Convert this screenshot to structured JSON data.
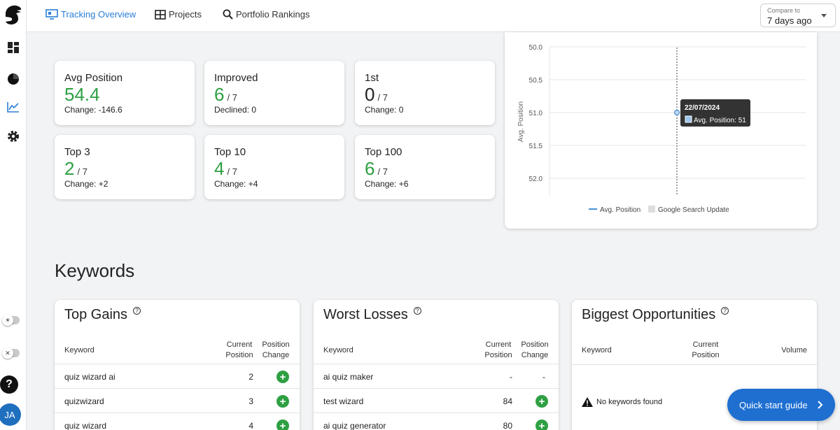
{
  "nav": {
    "tracking_overview": "Tracking Overview",
    "projects": "Projects",
    "portfolio_rankings": "Portfolio Rankings"
  },
  "compare": {
    "label": "Compare to",
    "value": "7 days ago"
  },
  "stats": {
    "avg_position": {
      "title": "Avg Position",
      "value": "54.4",
      "change": "Change: -146.6"
    },
    "improved": {
      "title": "Improved",
      "value": "6",
      "total": "/ 7",
      "change": "Declined: 0"
    },
    "first": {
      "title": "1st",
      "value": "0",
      "total": "/ 7",
      "change": "Change: 0"
    },
    "top3": {
      "title": "Top 3",
      "value": "2",
      "total": "/ 7",
      "change": "Change: +2"
    },
    "top10": {
      "title": "Top 10",
      "value": "4",
      "total": "/ 7",
      "change": "Change: +4"
    },
    "top100": {
      "title": "Top 100",
      "value": "6",
      "total": "/ 7",
      "change": "Change: +6"
    }
  },
  "chart_data": {
    "type": "line",
    "ylabel": "Avg. Position",
    "yticks": [
      "50.0",
      "50.5",
      "51.0",
      "51.5",
      "52.0"
    ],
    "ylim": [
      50.0,
      52.0
    ],
    "y_reversed": true,
    "series": [
      {
        "name": "Avg. Position",
        "color": "#4a90d9",
        "points": [
          {
            "x": "22/07/2024",
            "y": 51
          }
        ]
      }
    ],
    "legend": [
      "Avg. Position",
      "Google Search Update"
    ],
    "legend_position": "bottom",
    "tooltip": {
      "date": "22/07/2024",
      "text": "Avg. Position: 51"
    },
    "grid": true
  },
  "keywords_title": "Keywords",
  "top_gains": {
    "title": "Top Gains",
    "headers": {
      "keyword": "Keyword",
      "current": "Current Position",
      "change": "Position Change"
    },
    "rows": [
      {
        "keyword": "quiz wizard ai",
        "current": "2"
      },
      {
        "keyword": "quizwizard",
        "current": "3"
      },
      {
        "keyword": "quiz wizard",
        "current": "4"
      }
    ]
  },
  "worst_losses": {
    "title": "Worst Losses",
    "headers": {
      "keyword": "Keyword",
      "current": "Current Position",
      "change": "Position Change"
    },
    "rows": [
      {
        "keyword": "ai quiz maker",
        "current": "-",
        "change": "-"
      },
      {
        "keyword": "test wizard",
        "current": "84"
      },
      {
        "keyword": "ai quiz generator",
        "current": "80"
      }
    ]
  },
  "opportunities": {
    "title": "Biggest Opportunities",
    "headers": {
      "keyword": "Keyword",
      "current": "Current Position",
      "volume": "Volume"
    },
    "empty": "No keywords found"
  },
  "quick_start": "Quick start guide",
  "user": {
    "initials": "JA"
  },
  "colors": {
    "accent": "#2a7fd6",
    "positive": "#2ea043",
    "button": "#1f6fd1"
  }
}
